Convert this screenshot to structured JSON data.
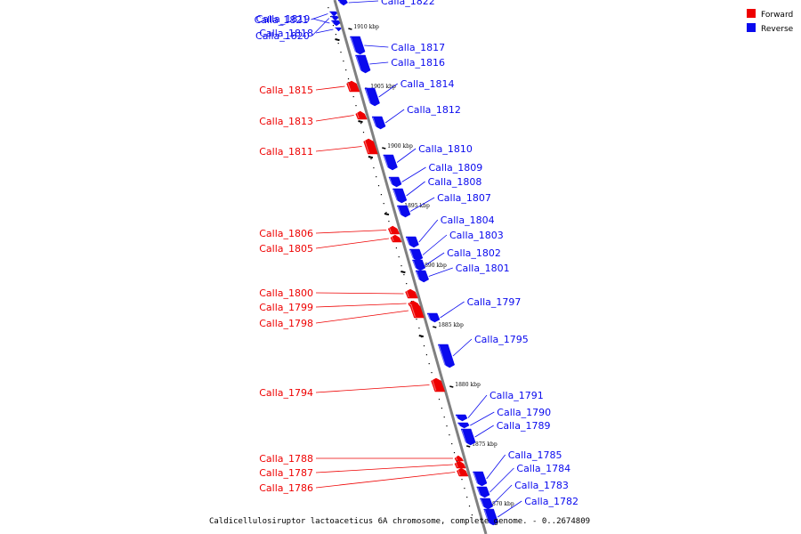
{
  "caption": "Caldicellulosiruptor lactoaceticus 6A chromosome, complete genome. - 0..2674809",
  "legend": {
    "items": [
      {
        "label": "Forward",
        "color": "#ee0000"
      },
      {
        "label": "Reverse",
        "color": "#0a0aee"
      }
    ]
  },
  "colors": {
    "forward": "#ee0000",
    "reverse": "#0a0aee",
    "backbone": "#808080",
    "tick": "#000000"
  },
  "ticks": [
    {
      "label": "1910 kbp",
      "kbp": 1910
    },
    {
      "label": "1905 kbp",
      "kbp": 1905
    },
    {
      "label": "1900 kbp",
      "kbp": 1900
    },
    {
      "label": "1895 kbp",
      "kbp": 1895
    },
    {
      "label": "1890 kbp",
      "kbp": 1890
    },
    {
      "label": "1885 kbp",
      "kbp": 1885
    },
    {
      "label": "1880 kbp",
      "kbp": 1880
    },
    {
      "label": "1875 kbp",
      "kbp": 1875
    },
    {
      "label": "1870 kbp",
      "kbp": 1870
    }
  ],
  "genes": [
    {
      "label": "Calla_1822",
      "strand": "reverse"
    },
    {
      "label": "Calla_1821",
      "strand": "reverse"
    },
    {
      "label": "Calla_1820",
      "strand": "reverse"
    },
    {
      "label": "Calla_1819",
      "strand": "reverse"
    },
    {
      "label": "Calla_1818",
      "strand": "reverse"
    },
    {
      "label": "Calla_1817",
      "strand": "reverse"
    },
    {
      "label": "Calla_1816",
      "strand": "reverse"
    },
    {
      "label": "Calla_1815",
      "strand": "forward"
    },
    {
      "label": "Calla_1814",
      "strand": "reverse"
    },
    {
      "label": "Calla_1813",
      "strand": "forward"
    },
    {
      "label": "Calla_1812",
      "strand": "reverse"
    },
    {
      "label": "Calla_1811",
      "strand": "forward"
    },
    {
      "label": "Calla_1810",
      "strand": "reverse"
    },
    {
      "label": "Calla_1809",
      "strand": "reverse"
    },
    {
      "label": "Calla_1808",
      "strand": "reverse"
    },
    {
      "label": "Calla_1807",
      "strand": "reverse"
    },
    {
      "label": "Calla_1806",
      "strand": "forward"
    },
    {
      "label": "Calla_1805",
      "strand": "forward"
    },
    {
      "label": "Calla_1804",
      "strand": "reverse"
    },
    {
      "label": "Calla_1803",
      "strand": "reverse"
    },
    {
      "label": "Calla_1802",
      "strand": "reverse"
    },
    {
      "label": "Calla_1801",
      "strand": "reverse"
    },
    {
      "label": "Calla_1800",
      "strand": "forward"
    },
    {
      "label": "Calla_1799",
      "strand": "forward"
    },
    {
      "label": "Calla_1798",
      "strand": "forward"
    },
    {
      "label": "Calla_1797",
      "strand": "reverse"
    },
    {
      "label": "Calla_1795",
      "strand": "reverse"
    },
    {
      "label": "Calla_1794",
      "strand": "forward"
    },
    {
      "label": "Calla_1791",
      "strand": "reverse"
    },
    {
      "label": "Calla_1790",
      "strand": "reverse"
    },
    {
      "label": "Calla_1789",
      "strand": "reverse"
    },
    {
      "label": "Calla_1788",
      "strand": "forward"
    },
    {
      "label": "Calla_1787",
      "strand": "forward"
    },
    {
      "label": "Calla_1786",
      "strand": "forward"
    },
    {
      "label": "Calla_1785",
      "strand": "reverse"
    },
    {
      "label": "Calla_1784",
      "strand": "reverse"
    },
    {
      "label": "Calla_1783",
      "strand": "reverse"
    },
    {
      "label": "Calla_1782",
      "strand": "reverse"
    }
  ]
}
